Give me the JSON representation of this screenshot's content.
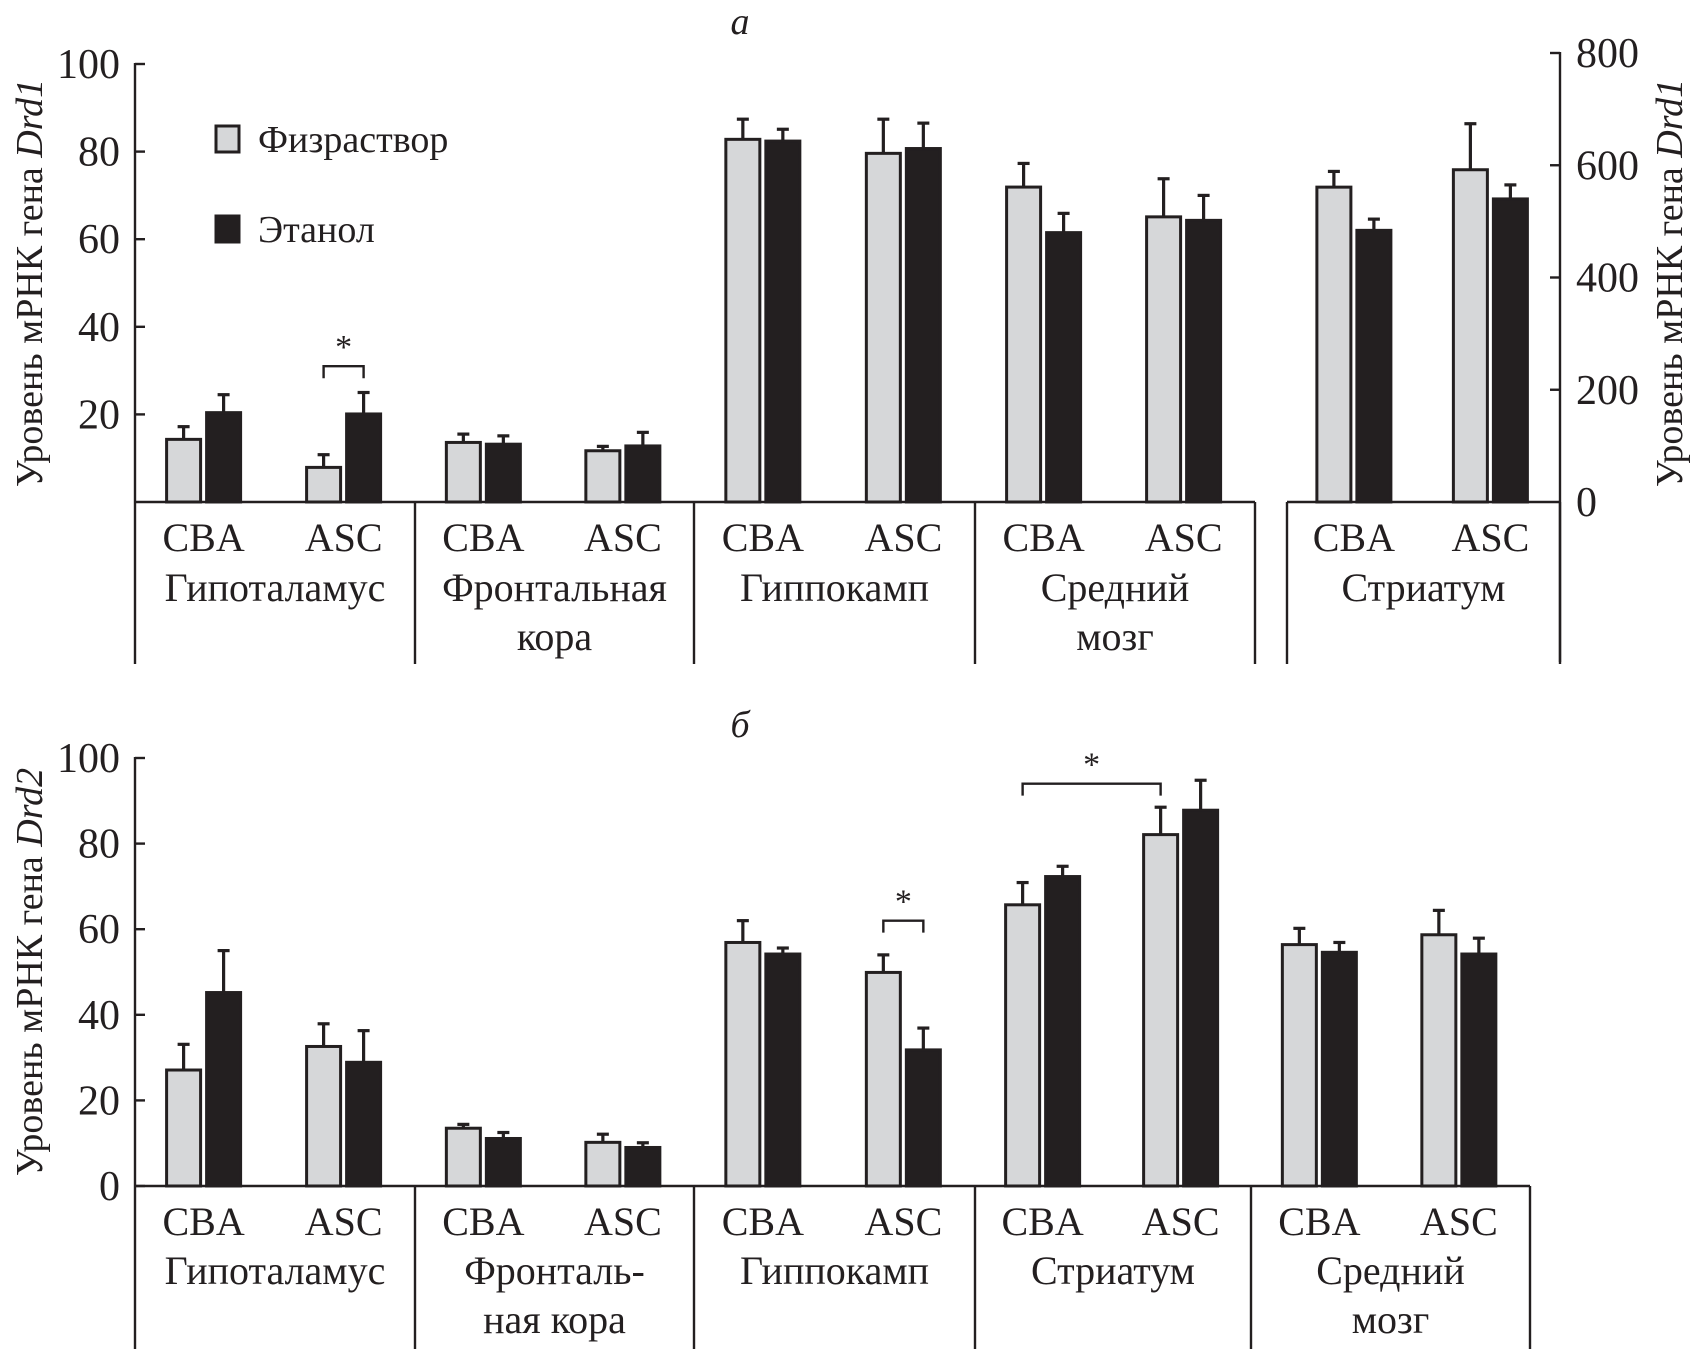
{
  "legend": [
    {
      "name": "Физраствор",
      "fill": "#d6d7d9"
    },
    {
      "name": "Этанол",
      "fill": "#231f20"
    }
  ],
  "colors": {
    "saline": "#d6d7d9",
    "ethanol": "#231f20",
    "stroke": "#231f20"
  },
  "chart_data": [
    {
      "type": "bar",
      "panel": "а",
      "title": "а",
      "ylabel": "Уровень мРНК гена ",
      "ylabel_gene": "Drd1",
      "ylim": [
        0,
        100
      ],
      "yticks": [
        "20",
        "40",
        "60",
        "80",
        "100"
      ],
      "yticks_values": [
        20,
        40,
        60,
        80,
        100
      ],
      "secondary_ylabel": "Уровень мРНК гена ",
      "secondary_ylabel_gene": "Drd1",
      "secondary_ylim": [
        0,
        800
      ],
      "secondary_yticks": [
        "0",
        "200",
        "400",
        "600",
        "800"
      ],
      "secondary_yticks_values": [
        0,
        200,
        400,
        600,
        800
      ],
      "series_names": [
        "Физраствор",
        "Этанол"
      ],
      "regions": [
        {
          "name_lines": [
            "Гипоталамус"
          ],
          "axis": "left",
          "groups": [
            {
              "strain": "CBA",
              "values": [
                14.3,
                20.4
              ],
              "errors": [
                2.9,
                4.1
              ]
            },
            {
              "strain": "ASC",
              "values": [
                7.9,
                20.1
              ],
              "errors": [
                2.9,
                4.9
              ]
            }
          ]
        },
        {
          "name_lines": [
            "Фронтальная",
            "кора"
          ],
          "axis": "left",
          "groups": [
            {
              "strain": "CBA",
              "values": [
                13.6,
                13.2
              ],
              "errors": [
                1.9,
                1.9
              ]
            },
            {
              "strain": "ASC",
              "values": [
                11.7,
                12.8
              ],
              "errors": [
                1.0,
                3.1
              ]
            }
          ]
        },
        {
          "name_lines": [
            "Гиппокамп"
          ],
          "axis": "left",
          "groups": [
            {
              "strain": "CBA",
              "values": [
                82.8,
                82.4
              ],
              "errors": [
                4.6,
                2.7
              ]
            },
            {
              "strain": "ASC",
              "values": [
                79.6,
                80.7
              ],
              "errors": [
                7.8,
                5.8
              ]
            }
          ]
        },
        {
          "name_lines": [
            "Средний",
            "мозг"
          ],
          "axis": "left",
          "groups": [
            {
              "strain": "CBA",
              "values": [
                71.9,
                61.5
              ],
              "errors": [
                5.4,
                4.4
              ]
            },
            {
              "strain": "ASC",
              "values": [
                65.1,
                64.3
              ],
              "errors": [
                8.7,
                5.7
              ]
            }
          ]
        },
        {
          "name_lines": [
            "Стриатум"
          ],
          "axis": "right",
          "groups": [
            {
              "strain": "CBA",
              "values": [
                561,
                484
              ],
              "errors": [
                28,
                20
              ]
            },
            {
              "strain": "ASC",
              "values": [
                592,
                540
              ],
              "errors": [
                82,
                25
              ]
            }
          ]
        }
      ],
      "annotations": [
        {
          "text": "*",
          "type": "bracket",
          "from": {
            "region": 0,
            "group": 1,
            "series": 0
          },
          "to": {
            "region": 0,
            "group": 1,
            "series": 1
          },
          "level": 31
        }
      ]
    },
    {
      "type": "bar",
      "panel": "б",
      "title": "б",
      "ylabel": "Уровень мРНК гена ",
      "ylabel_gene": "Drd2",
      "ylim": [
        0,
        100
      ],
      "yticks": [
        "0",
        "20",
        "40",
        "60",
        "80",
        "100"
      ],
      "yticks_values": [
        0,
        20,
        40,
        60,
        80,
        100
      ],
      "series_names": [
        "Физраствор",
        "Этанол"
      ],
      "regions": [
        {
          "name_lines": [
            "Гипоталамус"
          ],
          "axis": "left",
          "groups": [
            {
              "strain": "CBA",
              "values": [
                27.1,
                45.2
              ],
              "errors": [
                6.0,
                9.8
              ]
            },
            {
              "strain": "ASC",
              "values": [
                32.6,
                28.9
              ],
              "errors": [
                5.3,
                7.4
              ]
            }
          ]
        },
        {
          "name_lines": [
            "Фронталь-",
            "ная кора"
          ],
          "axis": "left",
          "groups": [
            {
              "strain": "CBA",
              "values": [
                13.5,
                11.1
              ],
              "errors": [
                0.9,
                1.4
              ]
            },
            {
              "strain": "ASC",
              "values": [
                10.2,
                9.0
              ],
              "errors": [
                1.9,
                1.1
              ]
            }
          ]
        },
        {
          "name_lines": [
            "Гиппокамп"
          ],
          "axis": "left",
          "groups": [
            {
              "strain": "CBA",
              "values": [
                56.9,
                54.2
              ],
              "errors": [
                5.1,
                1.4
              ]
            },
            {
              "strain": "ASC",
              "values": [
                49.9,
                31.8
              ],
              "errors": [
                4.1,
                5.1
              ]
            }
          ]
        },
        {
          "name_lines": [
            "Стриатум"
          ],
          "axis": "left",
          "groups": [
            {
              "strain": "CBA",
              "values": [
                65.7,
                72.3
              ],
              "errors": [
                5.2,
                2.4
              ]
            },
            {
              "strain": "ASC",
              "values": [
                82.1,
                87.8
              ],
              "errors": [
                6.4,
                7.0
              ]
            }
          ]
        },
        {
          "name_lines": [
            "Средний",
            "мозг"
          ],
          "axis": "left",
          "groups": [
            {
              "strain": "CBA",
              "values": [
                56.4,
                54.6
              ],
              "errors": [
                3.8,
                2.3
              ]
            },
            {
              "strain": "ASC",
              "values": [
                58.7,
                54.2
              ],
              "errors": [
                5.7,
                3.7
              ]
            }
          ]
        }
      ],
      "annotations": [
        {
          "text": "*",
          "type": "bracket",
          "from": {
            "region": 2,
            "group": 1,
            "series": 0
          },
          "to": {
            "region": 2,
            "group": 1,
            "series": 1
          },
          "level": 62
        },
        {
          "text": "*",
          "type": "bracket",
          "from": {
            "region": 3,
            "group": 0,
            "series": 0
          },
          "to": {
            "region": 3,
            "group": 1,
            "series": 0
          },
          "level": 94
        }
      ]
    }
  ]
}
